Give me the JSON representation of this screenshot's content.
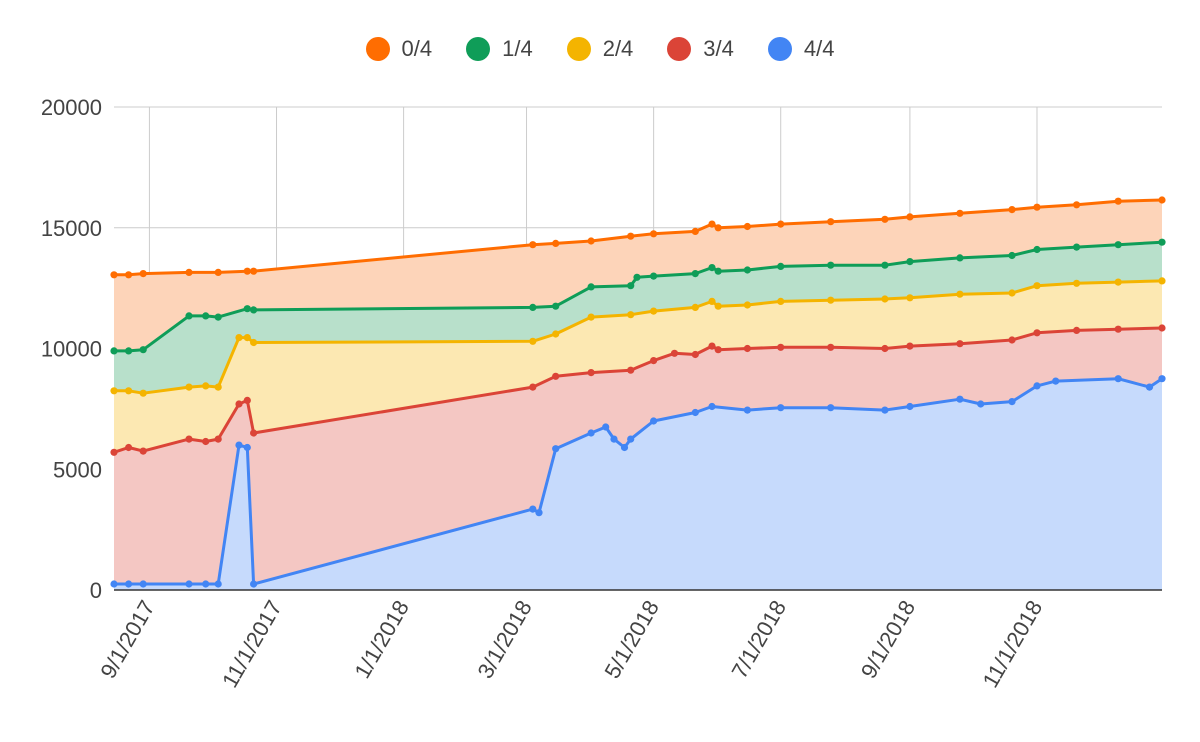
{
  "chart_data": {
    "type": "area",
    "x_axis": {
      "type": "date",
      "min": "2017-08-15",
      "max": "2018-12-31",
      "tick_labels": [
        "9/1/2017",
        "11/1/2017",
        "1/1/2018",
        "3/1/2018",
        "5/1/2018",
        "7/1/2018",
        "9/1/2018",
        "11/1/2018"
      ],
      "ticks": [
        "2017-09-01",
        "2017-11-01",
        "2018-01-01",
        "2018-03-01",
        "2018-05-01",
        "2018-07-01",
        "2018-09-01",
        "2018-11-01"
      ]
    },
    "y_axis": {
      "min": 0,
      "max": 20000,
      "ticks": [
        0,
        5000,
        10000,
        15000,
        20000
      ]
    },
    "grid": true,
    "legend_position": "top",
    "series": [
      {
        "name": "0/4",
        "color": "#ff6d01",
        "fill": "#fdd4b9",
        "points": [
          [
            "2017-08-15",
            13050
          ],
          [
            "2017-08-22",
            13050
          ],
          [
            "2017-08-29",
            13100
          ],
          [
            "2017-09-20",
            13150
          ],
          [
            "2017-10-04",
            13150
          ],
          [
            "2017-10-18",
            13200
          ],
          [
            "2017-10-21",
            13200
          ],
          [
            "2018-03-04",
            14300
          ],
          [
            "2018-03-15",
            14350
          ],
          [
            "2018-04-01",
            14450
          ],
          [
            "2018-04-20",
            14650
          ],
          [
            "2018-05-01",
            14750
          ],
          [
            "2018-05-21",
            14850
          ],
          [
            "2018-05-29",
            15150
          ],
          [
            "2018-06-01",
            15000
          ],
          [
            "2018-06-15",
            15050
          ],
          [
            "2018-07-01",
            15150
          ],
          [
            "2018-07-25",
            15250
          ],
          [
            "2018-08-20",
            15350
          ],
          [
            "2018-09-01",
            15450
          ],
          [
            "2018-09-25",
            15600
          ],
          [
            "2018-10-20",
            15750
          ],
          [
            "2018-11-01",
            15850
          ],
          [
            "2018-11-20",
            15950
          ],
          [
            "2018-12-10",
            16100
          ],
          [
            "2018-12-31",
            16150
          ]
        ]
      },
      {
        "name": "1/4",
        "color": "#0f9d58",
        "fill": "#b8e0cb",
        "points": [
          [
            "2017-08-15",
            9900
          ],
          [
            "2017-08-22",
            9900
          ],
          [
            "2017-08-29",
            9950
          ],
          [
            "2017-09-20",
            11350
          ],
          [
            "2017-09-28",
            11350
          ],
          [
            "2017-10-04",
            11300
          ],
          [
            "2017-10-18",
            11650
          ],
          [
            "2017-10-21",
            11600
          ],
          [
            "2018-03-04",
            11700
          ],
          [
            "2018-03-15",
            11750
          ],
          [
            "2018-04-01",
            12550
          ],
          [
            "2018-04-20",
            12600
          ],
          [
            "2018-04-23",
            12950
          ],
          [
            "2018-05-01",
            13000
          ],
          [
            "2018-05-21",
            13100
          ],
          [
            "2018-05-29",
            13350
          ],
          [
            "2018-06-01",
            13200
          ],
          [
            "2018-06-15",
            13250
          ],
          [
            "2018-07-01",
            13400
          ],
          [
            "2018-07-25",
            13450
          ],
          [
            "2018-08-20",
            13450
          ],
          [
            "2018-09-01",
            13600
          ],
          [
            "2018-09-25",
            13750
          ],
          [
            "2018-10-20",
            13850
          ],
          [
            "2018-11-01",
            14100
          ],
          [
            "2018-11-20",
            14200
          ],
          [
            "2018-12-10",
            14300
          ],
          [
            "2018-12-31",
            14400
          ]
        ]
      },
      {
        "name": "2/4",
        "color": "#f4b400",
        "fill": "#fce8b2",
        "points": [
          [
            "2017-08-15",
            8250
          ],
          [
            "2017-08-22",
            8250
          ],
          [
            "2017-08-29",
            8150
          ],
          [
            "2017-09-20",
            8400
          ],
          [
            "2017-09-28",
            8450
          ],
          [
            "2017-10-04",
            8400
          ],
          [
            "2017-10-14",
            10450
          ],
          [
            "2017-10-18",
            10450
          ],
          [
            "2017-10-21",
            10250
          ],
          [
            "2018-03-04",
            10300
          ],
          [
            "2018-03-15",
            10600
          ],
          [
            "2018-04-01",
            11300
          ],
          [
            "2018-04-20",
            11400
          ],
          [
            "2018-05-01",
            11550
          ],
          [
            "2018-05-21",
            11700
          ],
          [
            "2018-05-29",
            11950
          ],
          [
            "2018-06-01",
            11750
          ],
          [
            "2018-06-15",
            11800
          ],
          [
            "2018-07-01",
            11950
          ],
          [
            "2018-07-25",
            12000
          ],
          [
            "2018-08-20",
            12050
          ],
          [
            "2018-09-01",
            12100
          ],
          [
            "2018-09-25",
            12250
          ],
          [
            "2018-10-20",
            12300
          ],
          [
            "2018-11-01",
            12600
          ],
          [
            "2018-11-20",
            12700
          ],
          [
            "2018-12-10",
            12750
          ],
          [
            "2018-12-31",
            12800
          ]
        ]
      },
      {
        "name": "3/4",
        "color": "#db4437",
        "fill": "#f4c7c3",
        "points": [
          [
            "2017-08-15",
            5700
          ],
          [
            "2017-08-22",
            5900
          ],
          [
            "2017-08-29",
            5750
          ],
          [
            "2017-09-20",
            6250
          ],
          [
            "2017-09-28",
            6150
          ],
          [
            "2017-10-04",
            6250
          ],
          [
            "2017-10-14",
            7700
          ],
          [
            "2017-10-18",
            7850
          ],
          [
            "2017-10-21",
            6500
          ],
          [
            "2018-03-04",
            8400
          ],
          [
            "2018-03-15",
            8850
          ],
          [
            "2018-04-01",
            9000
          ],
          [
            "2018-04-20",
            9100
          ],
          [
            "2018-05-01",
            9500
          ],
          [
            "2018-05-11",
            9800
          ],
          [
            "2018-05-21",
            9750
          ],
          [
            "2018-05-29",
            10100
          ],
          [
            "2018-06-01",
            9950
          ],
          [
            "2018-06-15",
            10000
          ],
          [
            "2018-07-01",
            10050
          ],
          [
            "2018-07-25",
            10050
          ],
          [
            "2018-08-20",
            10000
          ],
          [
            "2018-09-01",
            10100
          ],
          [
            "2018-09-25",
            10200
          ],
          [
            "2018-10-20",
            10350
          ],
          [
            "2018-11-01",
            10650
          ],
          [
            "2018-11-20",
            10750
          ],
          [
            "2018-12-10",
            10800
          ],
          [
            "2018-12-31",
            10850
          ]
        ]
      },
      {
        "name": "4/4",
        "color": "#4285f4",
        "fill": "#c6dafc",
        "points": [
          [
            "2017-08-15",
            250
          ],
          [
            "2017-08-22",
            250
          ],
          [
            "2017-08-29",
            250
          ],
          [
            "2017-09-20",
            250
          ],
          [
            "2017-09-28",
            250
          ],
          [
            "2017-10-04",
            250
          ],
          [
            "2017-10-14",
            6000
          ],
          [
            "2017-10-18",
            5900
          ],
          [
            "2017-10-21",
            250
          ],
          [
            "2018-03-04",
            3350
          ],
          [
            "2018-03-07",
            3200
          ],
          [
            "2018-03-15",
            5850
          ],
          [
            "2018-04-01",
            6500
          ],
          [
            "2018-04-08",
            6750
          ],
          [
            "2018-04-12",
            6250
          ],
          [
            "2018-04-17",
            5900
          ],
          [
            "2018-04-20",
            6250
          ],
          [
            "2018-05-01",
            7000
          ],
          [
            "2018-05-21",
            7350
          ],
          [
            "2018-05-29",
            7600
          ],
          [
            "2018-06-15",
            7450
          ],
          [
            "2018-07-01",
            7550
          ],
          [
            "2018-07-25",
            7550
          ],
          [
            "2018-08-20",
            7450
          ],
          [
            "2018-09-01",
            7600
          ],
          [
            "2018-09-25",
            7900
          ],
          [
            "2018-10-05",
            7700
          ],
          [
            "2018-10-20",
            7800
          ],
          [
            "2018-11-01",
            8450
          ],
          [
            "2018-11-10",
            8650
          ],
          [
            "2018-12-10",
            8750
          ],
          [
            "2018-12-25",
            8400
          ],
          [
            "2018-12-31",
            8750
          ]
        ]
      }
    ]
  }
}
